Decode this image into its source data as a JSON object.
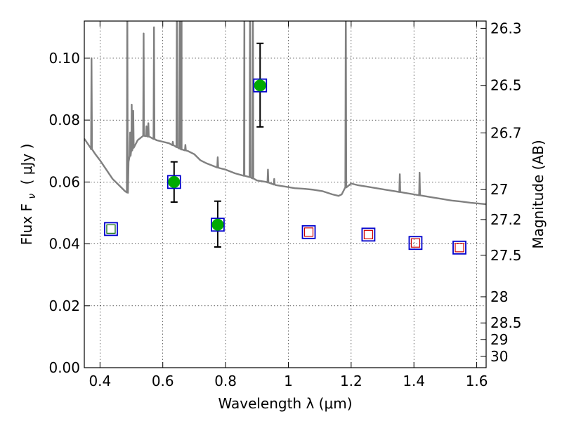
{
  "chart_data": {
    "type": "scatter",
    "xlabel": "Wavelength  λ (μm)",
    "ylabel": "Flux  F",
    "ylabel_symbol_sub": "ν",
    "ylabel_unit": "( μJy )",
    "y2label": "Magnitude (AB)",
    "xlim": [
      0.35,
      1.63
    ],
    "ylim": [
      0.0,
      0.112
    ],
    "x_ticks": [
      0.4,
      0.6,
      0.8,
      1.0,
      1.2,
      1.4,
      1.6
    ],
    "x_tick_labels": [
      "0.4",
      "0.6",
      "0.8",
      "1",
      "1.2",
      "1.4",
      "1.6"
    ],
    "y_ticks": [
      0.0,
      0.02,
      0.04,
      0.06,
      0.08,
      0.1
    ],
    "y_tick_labels": [
      "0.00",
      "0.02",
      "0.04",
      "0.06",
      "0.08",
      "0.10"
    ],
    "y2_ticks": [
      {
        "label": "26.3",
        "mag": 26.3
      },
      {
        "label": "26.5",
        "mag": 26.5
      },
      {
        "label": "26.7",
        "mag": 26.7
      },
      {
        "label": "27",
        "mag": 27.0
      },
      {
        "label": "27.2",
        "mag": 27.2
      },
      {
        "label": "27.5",
        "mag": 27.5
      },
      {
        "label": "28",
        "mag": 28.0
      },
      {
        "label": "28.5",
        "mag": 28.5
      },
      {
        "label": "29",
        "mag": 29.0
      },
      {
        "label": "30",
        "mag": 30.0
      }
    ],
    "grid": true,
    "colors": {
      "sed": "#808080",
      "detection": "#00aa00",
      "model_box": "#0000cc",
      "limit_inner_green": "#006400",
      "limit_inner_red": "#cc0000",
      "errorbar": "#000000"
    },
    "detections": [
      {
        "x": 0.636,
        "y": 0.06,
        "yerr_low": 0.0535,
        "yerr_high": 0.0665
      },
      {
        "x": 0.775,
        "y": 0.0462,
        "yerr_low": 0.039,
        "yerr_high": 0.0538
      },
      {
        "x": 0.91,
        "y": 0.0912,
        "yerr_low": 0.0778,
        "yerr_high": 0.1048
      }
    ],
    "model_photometry": [
      {
        "x": 0.435,
        "y": 0.0448,
        "inner": "green"
      },
      {
        "x": 0.636,
        "y": 0.06,
        "inner": "none"
      },
      {
        "x": 0.775,
        "y": 0.0462,
        "inner": "none"
      },
      {
        "x": 0.91,
        "y": 0.0912,
        "inner": "none"
      },
      {
        "x": 1.065,
        "y": 0.0438,
        "inner": "red"
      },
      {
        "x": 1.255,
        "y": 0.043,
        "inner": "red"
      },
      {
        "x": 1.405,
        "y": 0.0403,
        "inner": "red"
      },
      {
        "x": 1.545,
        "y": 0.0388,
        "inner": "red"
      }
    ],
    "sed_continuum": [
      [
        0.35,
        0.074
      ],
      [
        0.37,
        0.071
      ],
      [
        0.385,
        0.069
      ],
      [
        0.4,
        0.067
      ],
      [
        0.42,
        0.064
      ],
      [
        0.44,
        0.061
      ],
      [
        0.46,
        0.059
      ],
      [
        0.48,
        0.057
      ],
      [
        0.489,
        0.0565
      ],
      [
        0.491,
        0.0665
      ],
      [
        0.5,
        0.07
      ],
      [
        0.52,
        0.0735
      ],
      [
        0.54,
        0.075
      ],
      [
        0.56,
        0.0745
      ],
      [
        0.58,
        0.0735
      ],
      [
        0.6,
        0.073
      ],
      [
        0.62,
        0.0725
      ],
      [
        0.64,
        0.0715
      ],
      [
        0.66,
        0.0705
      ],
      [
        0.68,
        0.07
      ],
      [
        0.7,
        0.069
      ],
      [
        0.72,
        0.067
      ],
      [
        0.74,
        0.066
      ],
      [
        0.76,
        0.0652
      ],
      [
        0.78,
        0.0645
      ],
      [
        0.8,
        0.064
      ],
      [
        0.83,
        0.0628
      ],
      [
        0.86,
        0.062
      ],
      [
        0.88,
        0.0615
      ],
      [
        0.9,
        0.0605
      ],
      [
        0.93,
        0.06
      ],
      [
        0.96,
        0.059
      ],
      [
        0.99,
        0.0585
      ],
      [
        1.02,
        0.058
      ],
      [
        1.05,
        0.0578
      ],
      [
        1.08,
        0.0575
      ],
      [
        1.11,
        0.057
      ],
      [
        1.14,
        0.056
      ],
      [
        1.16,
        0.0555
      ],
      [
        1.17,
        0.056
      ],
      [
        1.18,
        0.058
      ],
      [
        1.2,
        0.0595
      ],
      [
        1.22,
        0.059
      ],
      [
        1.25,
        0.0585
      ],
      [
        1.28,
        0.058
      ],
      [
        1.31,
        0.0575
      ],
      [
        1.34,
        0.057
      ],
      [
        1.37,
        0.0565
      ],
      [
        1.4,
        0.056
      ],
      [
        1.43,
        0.0555
      ],
      [
        1.46,
        0.055
      ],
      [
        1.49,
        0.0545
      ],
      [
        1.52,
        0.054
      ],
      [
        1.55,
        0.0537
      ],
      [
        1.58,
        0.0533
      ],
      [
        1.61,
        0.053
      ],
      [
        1.63,
        0.0528
      ]
    ],
    "sed_lines": [
      {
        "x": 0.373,
        "peak": 0.1
      },
      {
        "x": 0.487,
        "peak": 0.12
      },
      {
        "x": 0.496,
        "peak": 0.076
      },
      {
        "x": 0.501,
        "peak": 0.085
      },
      {
        "x": 0.506,
        "peak": 0.083
      },
      {
        "x": 0.539,
        "peak": 0.108
      },
      {
        "x": 0.548,
        "peak": 0.078
      },
      {
        "x": 0.554,
        "peak": 0.079
      },
      {
        "x": 0.572,
        "peak": 0.11
      },
      {
        "x": 0.632,
        "peak": 0.073
      },
      {
        "x": 0.645,
        "peak": 0.12
      },
      {
        "x": 0.654,
        "peak": 0.12
      },
      {
        "x": 0.66,
        "peak": 0.12
      },
      {
        "x": 0.672,
        "peak": 0.072
      },
      {
        "x": 0.775,
        "peak": 0.068
      },
      {
        "x": 0.86,
        "peak": 0.12
      },
      {
        "x": 0.878,
        "peak": 0.12
      },
      {
        "x": 0.887,
        "peak": 0.12
      },
      {
        "x": 0.935,
        "peak": 0.064
      },
      {
        "x": 0.955,
        "peak": 0.061
      },
      {
        "x": 1.183,
        "peak": 0.12
      },
      {
        "x": 1.355,
        "peak": 0.0625
      },
      {
        "x": 1.418,
        "peak": 0.063
      }
    ]
  }
}
